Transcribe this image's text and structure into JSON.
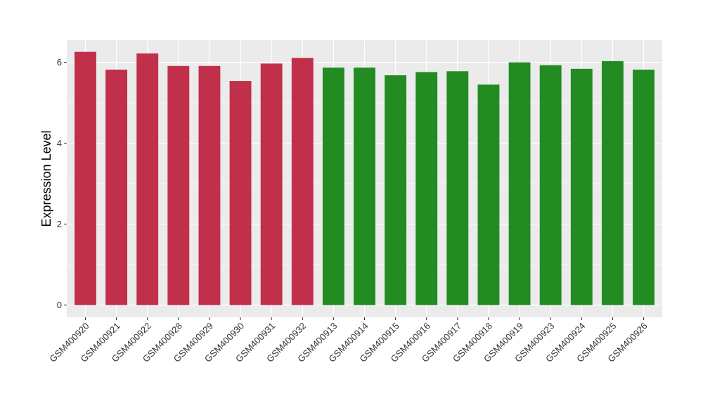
{
  "chart_data": {
    "type": "bar",
    "title": "",
    "xlabel": "",
    "ylabel": "Expression Level",
    "ylim": [
      -0.3,
      6.55
    ],
    "yticks": [
      0,
      2,
      4,
      6
    ],
    "grid": true,
    "background": "#EBEBEB",
    "gridline_color": "#FFFFFF",
    "categories": [
      "GSM400920",
      "GSM400921",
      "GSM400922",
      "GSM400928",
      "GSM400929",
      "GSM400930",
      "GSM400931",
      "GSM400932",
      "GSM400913",
      "GSM400914",
      "GSM400915",
      "GSM400916",
      "GSM400917",
      "GSM400918",
      "GSM400919",
      "GSM400923",
      "GSM400924",
      "GSM400925",
      "GSM400926"
    ],
    "values": [
      6.26,
      5.82,
      6.22,
      5.91,
      5.91,
      5.54,
      5.97,
      6.11,
      5.87,
      5.87,
      5.68,
      5.76,
      5.78,
      5.45,
      6.0,
      5.93,
      5.84,
      6.03,
      5.82
    ],
    "bar_colors": [
      "#C0304A",
      "#C0304A",
      "#C0304A",
      "#C0304A",
      "#C0304A",
      "#C0304A",
      "#C0304A",
      "#C0304A",
      "#228B22",
      "#228B22",
      "#228B22",
      "#228B22",
      "#228B22",
      "#228B22",
      "#228B22",
      "#228B22",
      "#228B22",
      "#228B22",
      "#228B22"
    ]
  }
}
